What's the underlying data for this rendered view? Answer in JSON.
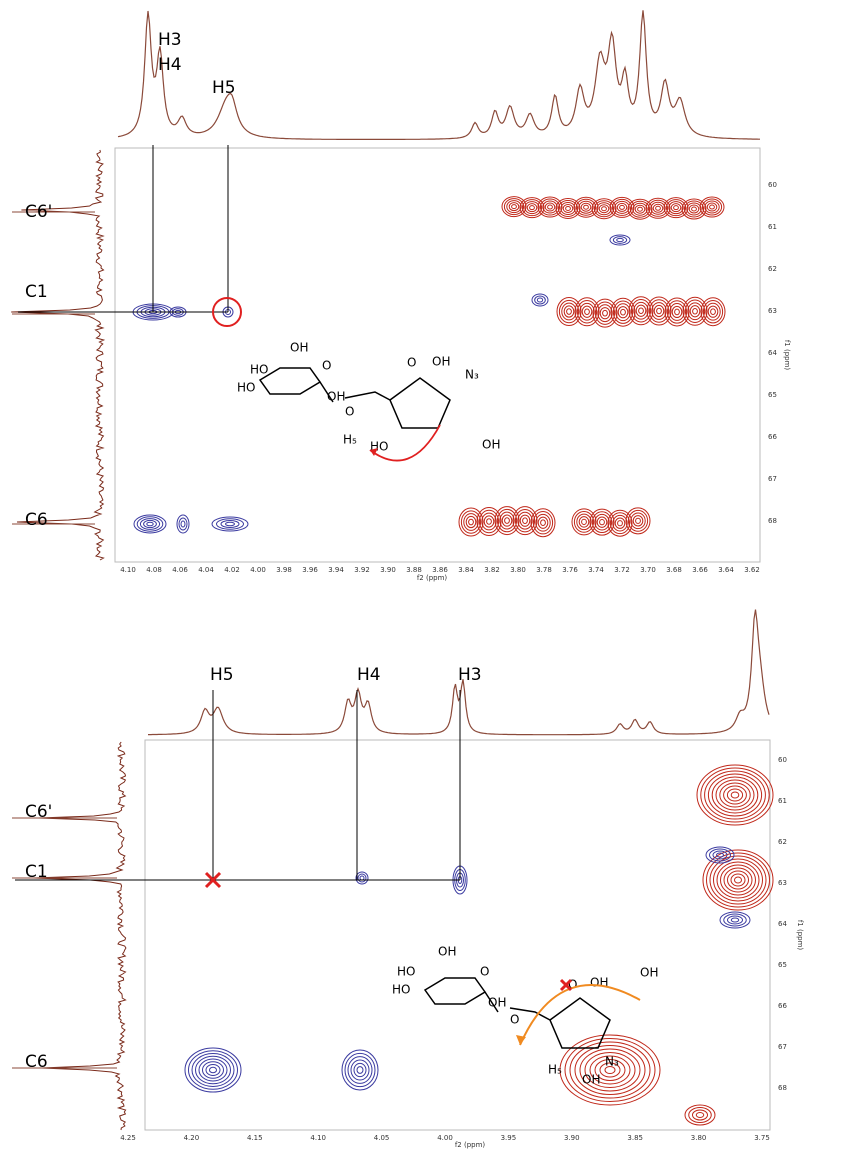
{
  "panels": [
    {
      "peak_labels": [
        "H3",
        "H4",
        "H5"
      ],
      "carbon_labels": [
        "C6'",
        "C1",
        "C6"
      ],
      "x_ticks": [
        "4.10",
        "4.08",
        "4.06",
        "4.04",
        "4.02",
        "4.00",
        "3.98",
        "3.96",
        "3.94",
        "3.92",
        "3.90",
        "3.88",
        "3.86",
        "3.84",
        "3.82",
        "3.80",
        "3.78",
        "3.76",
        "3.74",
        "3.72",
        "3.70",
        "3.68",
        "3.66",
        "3.64",
        "3.62"
      ],
      "y_ticks": [
        "60",
        "61",
        "62",
        "63",
        "64",
        "65",
        "66",
        "67",
        "68"
      ],
      "x_axis_title": "f2 (ppm)",
      "y_axis_title": "f1 (ppm)",
      "molecule_labels": [
        "OH",
        "HO",
        "HO",
        "OH",
        "O",
        "O",
        "O",
        "OH",
        "N₃",
        "H₅",
        "HO",
        "OH"
      ]
    },
    {
      "peak_labels": [
        "H5",
        "H4",
        "H3"
      ],
      "carbon_labels": [
        "C6'",
        "C1",
        "C6"
      ],
      "x_ticks": [
        "4.25",
        "4.20",
        "4.15",
        "4.10",
        "4.05",
        "4.00",
        "3.95",
        "3.90",
        "3.85",
        "3.80",
        "3.75"
      ],
      "y_ticks": [
        "60",
        "61",
        "62",
        "63",
        "64",
        "65",
        "66",
        "67",
        "68"
      ],
      "x_axis_title": "f2 (ppm)",
      "y_axis_title": "f1 (ppm)",
      "molecule_labels": [
        "OH",
        "HO",
        "HO",
        "OH",
        "O",
        "O",
        "O",
        "OH",
        "OH",
        "H₅",
        "N₃",
        "OH"
      ]
    }
  ]
}
